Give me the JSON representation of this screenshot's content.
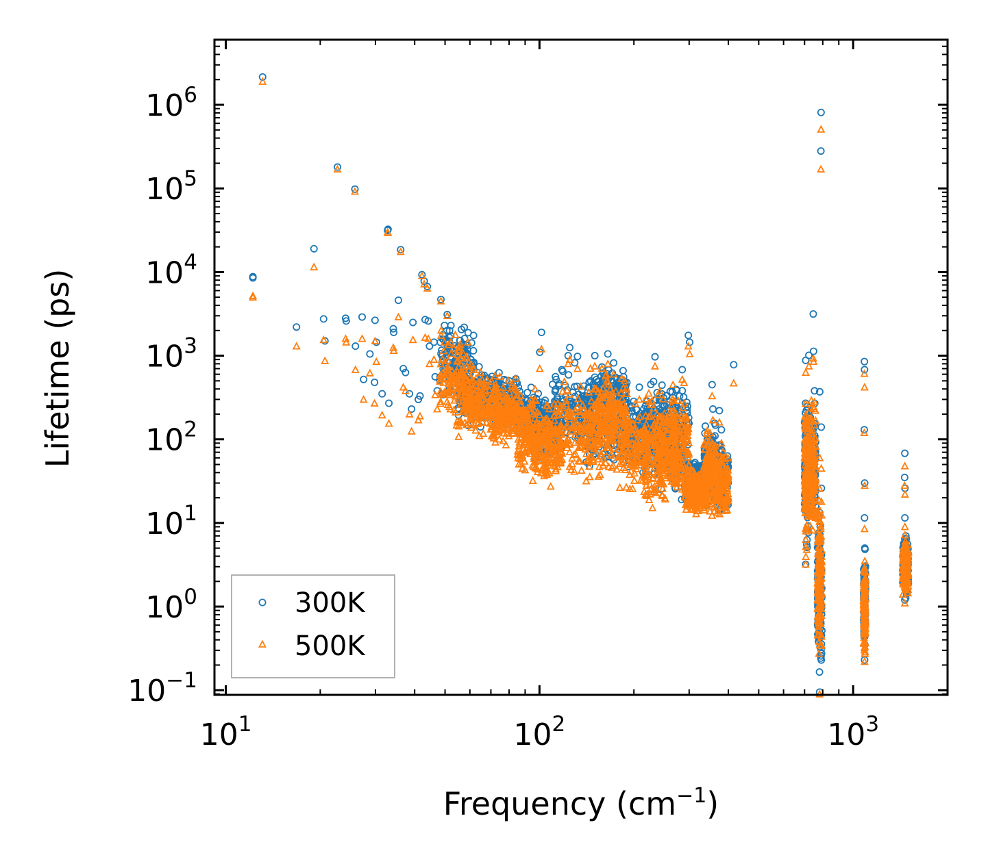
{
  "chart_data": {
    "type": "scatter",
    "title": "",
    "xlabel": "Frequency (cm",
    "xlabel_sup": "−1",
    "xlabel_close": ")",
    "ylabel": "Lifetime (ps)",
    "xscale": "log",
    "yscale": "log",
    "xlim": [
      9.2,
      2000
    ],
    "ylim": [
      0.088,
      6000000
    ],
    "x_ticks": [
      {
        "base": "10",
        "exp": "1",
        "value": 10
      },
      {
        "base": "10",
        "exp": "2",
        "value": 100
      },
      {
        "base": "10",
        "exp": "3",
        "value": 1000
      }
    ],
    "y_ticks": [
      {
        "base": "10",
        "exp": "−1",
        "value": 0.1
      },
      {
        "base": "10",
        "exp": "0",
        "value": 1
      },
      {
        "base": "10",
        "exp": "1",
        "value": 10
      },
      {
        "base": "10",
        "exp": "2",
        "value": 100
      },
      {
        "base": "10",
        "exp": "3",
        "value": 1000
      },
      {
        "base": "10",
        "exp": "4",
        "value": 10000
      },
      {
        "base": "10",
        "exp": "5",
        "value": 100000
      },
      {
        "base": "10",
        "exp": "6",
        "value": 1000000
      }
    ],
    "legend_position": "bottom-left",
    "colors": {
      "300K": "#1f77b4",
      "500K": "#ff7f0e",
      "frame": "#000000",
      "legend_border": "#999999"
    },
    "series": [
      {
        "name": "300K",
        "marker": "circle",
        "points": [
          [
            12.2,
            8800
          ],
          [
            12.2,
            8500
          ],
          [
            13.1,
            2150000
          ],
          [
            16.8,
            2200
          ],
          [
            19.1,
            19000
          ],
          [
            20.5,
            2750
          ],
          [
            20.7,
            1500
          ],
          [
            22.7,
            180000
          ],
          [
            24.1,
            2800
          ],
          [
            24.2,
            2600
          ],
          [
            25.8,
            98000
          ],
          [
            25.9,
            1300
          ],
          [
            27.2,
            2900
          ],
          [
            27.5,
            520
          ],
          [
            28.8,
            1050
          ],
          [
            29.8,
            480
          ],
          [
            29.9,
            2650
          ],
          [
            30.2,
            1450
          ],
          [
            31.5,
            350
          ],
          [
            32.8,
            31500
          ],
          [
            32.9,
            32500
          ],
          [
            33.1,
            270
          ],
          [
            34.2,
            2100
          ],
          [
            34.3,
            1900
          ],
          [
            35.5,
            4600
          ],
          [
            36.1,
            18500
          ],
          [
            36.8,
            700
          ],
          [
            37.4,
            630
          ],
          [
            38.5,
            350
          ],
          [
            39.1,
            230
          ],
          [
            39.5,
            2500
          ],
          [
            41.1,
            300
          ],
          [
            41.6,
            330
          ],
          [
            42.2,
            9300
          ],
          [
            42.9,
            7800
          ],
          [
            43.2,
            2700
          ],
          [
            43.9,
            6700
          ],
          [
            44.2,
            2600
          ],
          [
            44.6,
            1300
          ],
          [
            46.1,
            1450
          ],
          [
            46.5,
            560
          ],
          [
            47.2,
            380
          ],
          [
            48.5,
            4700
          ],
          [
            49.1,
            1000
          ],
          [
            49.8,
            2300
          ],
          [
            50.8,
            3100
          ],
          [
            51.1,
            1100
          ],
          [
            52.2,
            2300
          ],
          [
            101.5,
            1900
          ],
          [
            100.2,
            1100
          ],
          [
            123.4,
            1000
          ],
          [
            124.9,
            1250
          ],
          [
            132.2,
            980
          ],
          [
            150.1,
            1000
          ],
          [
            165.2,
            1050
          ],
          [
            172.4,
            820
          ],
          [
            208.1,
            420
          ],
          [
            233.5,
            970
          ],
          [
            285.2,
            680
          ],
          [
            298.2,
            1750
          ],
          [
            301.2,
            1450
          ],
          [
            355.1,
            450
          ],
          [
            357.2,
            230
          ],
          [
            374.5,
            220
          ],
          [
            380.2,
            130
          ],
          [
            416.1,
            780
          ],
          [
            706.1,
            880
          ],
          [
            722.4,
            1010
          ],
          [
            746.2,
            3150
          ],
          [
            747.8,
            1130
          ],
          [
            753.2,
            380
          ],
          [
            790.1,
            810000
          ],
          [
            789.2,
            280000
          ],
          [
            782.5,
            370
          ],
          [
            791.2,
            140
          ],
          [
            792.1,
            26
          ],
          [
            1086.1,
            850
          ],
          [
            1087.2,
            680
          ],
          [
            1085.2,
            130
          ],
          [
            1088.4,
            30
          ],
          [
            1087.1,
            11.5
          ],
          [
            1089.2,
            5
          ],
          [
            1088.1,
            1.2
          ],
          [
            1087.5,
            0.23
          ],
          [
            1461.2,
            68
          ],
          [
            1459.1,
            35
          ],
          [
            1463.2,
            26
          ],
          [
            1462.1,
            11.5
          ],
          [
            1460.5,
            6.5
          ],
          [
            1462.5,
            2.2
          ],
          [
            1461.5,
            1.2
          ],
          [
            782.1,
            0.095
          ],
          [
            705.5,
            3.2
          ],
          [
            711.2,
            5.5
          ]
        ],
        "clusters": [
          [
            [
              48,
              62
            ],
            [
              250,
              3000
            ]
          ],
          [
            [
              55,
              75
            ],
            [
              120,
              900
            ]
          ],
          [
            [
              60,
              85
            ],
            [
              150,
              700
            ]
          ],
          [
            [
              70,
              100
            ],
            [
              100,
              500
            ]
          ],
          [
            [
              85,
              110
            ],
            [
              80,
              350
            ]
          ],
          [
            [
              95,
              118
            ],
            [
              40,
              300
            ]
          ],
          [
            [
              110,
              150
            ],
            [
              50,
              1000
            ]
          ],
          [
            [
              140,
              180
            ],
            [
              30,
              800
            ]
          ],
          [
            [
              150,
              190
            ],
            [
              150,
              950
            ]
          ],
          [
            [
              180,
              220
            ],
            [
              30,
              400
            ]
          ],
          [
            [
              215,
              250
            ],
            [
              20,
              700
            ]
          ],
          [
            [
              240,
              275
            ],
            [
              30,
              500
            ]
          ],
          [
            [
              260,
              300
            ],
            [
              15,
              650
            ]
          ],
          [
            [
              290,
              330
            ],
            [
              15,
              60
            ]
          ],
          [
            [
              300,
              340
            ],
            [
              30,
              55
            ]
          ],
          [
            [
              335,
              365
            ],
            [
              12,
              200
            ]
          ],
          [
            [
              360,
              400
            ],
            [
              10,
              120
            ]
          ],
          [
            [
              700,
              720
            ],
            [
              3.5,
              700
            ]
          ],
          [
            [
              720,
              760
            ],
            [
              6,
              400
            ]
          ],
          [
            [
              770,
              795
            ],
            [
              0.1,
              20
            ]
          ],
          [
            [
              1080,
              1095
            ],
            [
              0.22,
              6
            ]
          ],
          [
            [
              1440,
              1500
            ],
            [
              1.1,
              9
            ]
          ]
        ]
      },
      {
        "name": "500K",
        "marker": "triangle",
        "points": [
          [
            12.2,
            5200
          ],
          [
            12.2,
            5000
          ],
          [
            13.1,
            1900000
          ],
          [
            16.8,
            1300
          ],
          [
            19.1,
            11500
          ],
          [
            20.5,
            1550
          ],
          [
            20.7,
            870
          ],
          [
            22.7,
            170000
          ],
          [
            24.1,
            1600
          ],
          [
            24.2,
            1450
          ],
          [
            25.8,
            92000
          ],
          [
            25.9,
            680
          ],
          [
            27.2,
            1600
          ],
          [
            27.5,
            300
          ],
          [
            28.8,
            620
          ],
          [
            29.8,
            270
          ],
          [
            29.9,
            1500
          ],
          [
            30.2,
            850
          ],
          [
            31.5,
            195
          ],
          [
            32.8,
            30000
          ],
          [
            32.9,
            29500
          ],
          [
            33.1,
            155
          ],
          [
            34.2,
            1250
          ],
          [
            34.3,
            1150
          ],
          [
            35.5,
            2900
          ],
          [
            36.1,
            17500
          ],
          [
            36.8,
            420
          ],
          [
            37.4,
            380
          ],
          [
            38.5,
            200
          ],
          [
            39.1,
            125
          ],
          [
            39.5,
            1550
          ],
          [
            41.1,
            170
          ],
          [
            41.6,
            190
          ],
          [
            42.2,
            9000
          ],
          [
            42.9,
            7200
          ],
          [
            43.2,
            1650
          ],
          [
            43.9,
            6400
          ],
          [
            44.2,
            1600
          ],
          [
            44.6,
            800
          ],
          [
            46.1,
            900
          ],
          [
            46.5,
            340
          ],
          [
            47.2,
            230
          ],
          [
            48.5,
            4500
          ],
          [
            49.1,
            620
          ],
          [
            49.8,
            1450
          ],
          [
            50.8,
            3000
          ],
          [
            51.1,
            680
          ],
          [
            52.2,
            1450
          ],
          [
            101.5,
            1200
          ],
          [
            100.2,
            700
          ],
          [
            123.4,
            800
          ],
          [
            124.9,
            900
          ],
          [
            132.2,
            700
          ],
          [
            150.1,
            750
          ],
          [
            165.2,
            800
          ],
          [
            172.4,
            600
          ],
          [
            208.1,
            300
          ],
          [
            233.5,
            750
          ],
          [
            285.2,
            520
          ],
          [
            298.2,
            1300
          ],
          [
            301.2,
            1050
          ],
          [
            355.1,
            330
          ],
          [
            357.2,
            170
          ],
          [
            374.5,
            160
          ],
          [
            380.2,
            90
          ],
          [
            416.1,
            470
          ],
          [
            706.1,
            630
          ],
          [
            722.4,
            750
          ],
          [
            746.2,
            930
          ],
          [
            747.8,
            850
          ],
          [
            753.2,
            280
          ],
          [
            790.1,
            510000
          ],
          [
            789.2,
            170000
          ],
          [
            782.5,
            60
          ],
          [
            791.2,
            45
          ],
          [
            792.1,
            18
          ],
          [
            1086.1,
            610
          ],
          [
            1087.2,
            420
          ],
          [
            1085.2,
            120
          ],
          [
            1088.4,
            28
          ],
          [
            1087.1,
            8.5
          ],
          [
            1089.2,
            3.5
          ],
          [
            1088.1,
            0.9
          ],
          [
            1087.5,
            0.22
          ],
          [
            1461.2,
            48
          ],
          [
            1459.1,
            28
          ],
          [
            1463.2,
            22
          ],
          [
            1462.1,
            9
          ],
          [
            1460.5,
            5.5
          ],
          [
            1462.5,
            1.9
          ],
          [
            1461.5,
            1.1
          ],
          [
            782.1,
            0.09
          ],
          [
            705.5,
            3.2
          ],
          [
            711.2,
            4.8
          ]
        ],
        "clusters": [
          [
            [
              48,
              62
            ],
            [
              110,
              2500
            ]
          ],
          [
            [
              55,
              75
            ],
            [
              90,
              850
            ]
          ],
          [
            [
              60,
              85
            ],
            [
              90,
              650
            ]
          ],
          [
            [
              70,
              100
            ],
            [
              60,
              450
            ]
          ],
          [
            [
              85,
              110
            ],
            [
              30,
              320
            ]
          ],
          [
            [
              95,
              118
            ],
            [
              22,
              280
            ]
          ],
          [
            [
              110,
              150
            ],
            [
              18,
              950
            ]
          ],
          [
            [
              140,
              180
            ],
            [
              22,
              750
            ]
          ],
          [
            [
              150,
              190
            ],
            [
              60,
              850
            ]
          ],
          [
            [
              180,
              220
            ],
            [
              18,
              350
            ]
          ],
          [
            [
              215,
              250
            ],
            [
              10,
              650
            ]
          ],
          [
            [
              240,
              275
            ],
            [
              14,
              450
            ]
          ],
          [
            [
              260,
              300
            ],
            [
              9,
              600
            ]
          ],
          [
            [
              290,
              330
            ],
            [
              12,
              50
            ]
          ],
          [
            [
              300,
              340
            ],
            [
              12,
              45
            ]
          ],
          [
            [
              335,
              365
            ],
            [
              9,
              170
            ]
          ],
          [
            [
              360,
              400
            ],
            [
              9,
              100
            ]
          ],
          [
            [
              700,
              720
            ],
            [
              3.3,
              650
            ]
          ],
          [
            [
              720,
              760
            ],
            [
              5,
              380
            ]
          ],
          [
            [
              770,
              795
            ],
            [
              0.09,
              60
            ]
          ],
          [
            [
              1080,
              1095
            ],
            [
              0.2,
              5
            ]
          ],
          [
            [
              1440,
              1500
            ],
            [
              1.0,
              8
            ]
          ]
        ]
      }
    ]
  }
}
